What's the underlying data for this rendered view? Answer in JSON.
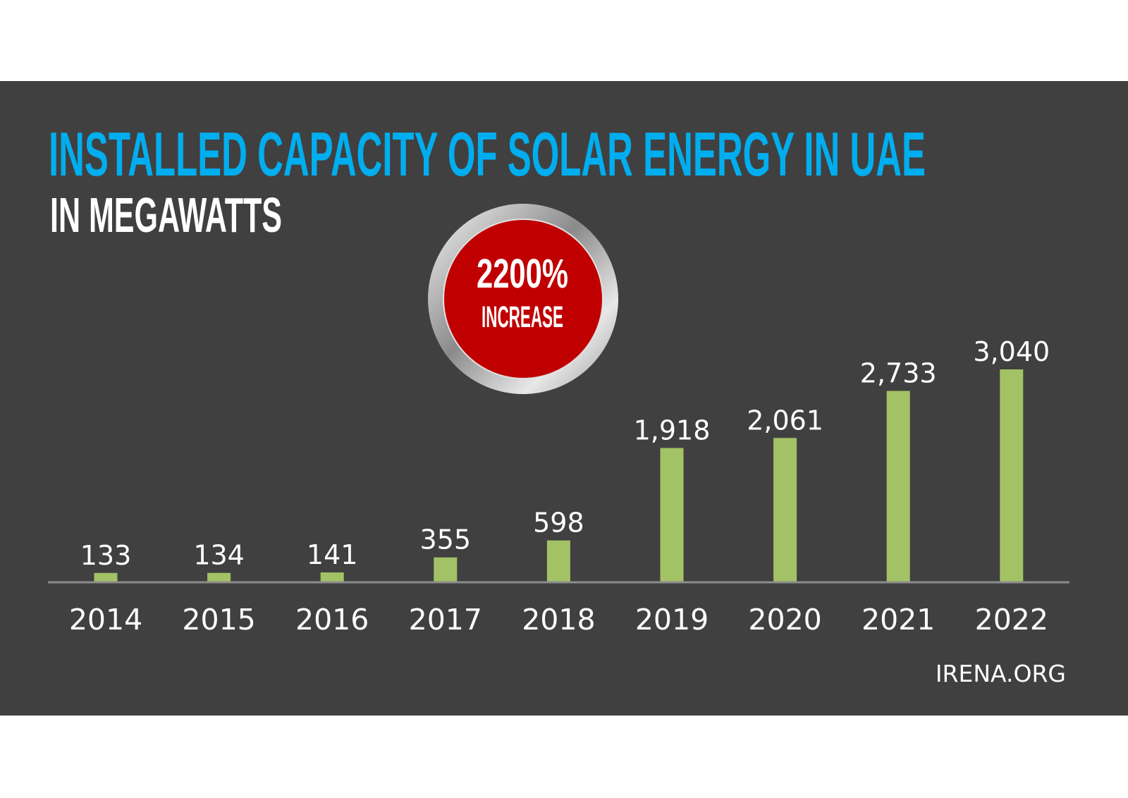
{
  "chart_data": {
    "type": "bar",
    "title": "INSTALLED CAPACITY OF SOLAR ENERGY IN UAE",
    "subtitle": "IN MEGAWATTS",
    "categories": [
      "2014",
      "2015",
      "2016",
      "2017",
      "2018",
      "2019",
      "2020",
      "2021",
      "2022"
    ],
    "values": [
      133,
      134,
      141,
      355,
      598,
      1918,
      2061,
      2733,
      3040
    ],
    "value_labels": [
      "133",
      "134",
      "141",
      "355",
      "598",
      "1,918",
      "2,061",
      "2,733",
      "3,040"
    ],
    "xlabel": "",
    "ylabel": "",
    "ylim": [
      0,
      3040
    ],
    "grid": false,
    "callout": {
      "value": "2200%",
      "label": "INCREASE"
    },
    "source": "IRENA.ORG",
    "colors": {
      "background": "#404040",
      "title": "#00aeef",
      "bar": "#a3c266",
      "callout": "#c00000",
      "axis": "#8c8c8c"
    }
  }
}
